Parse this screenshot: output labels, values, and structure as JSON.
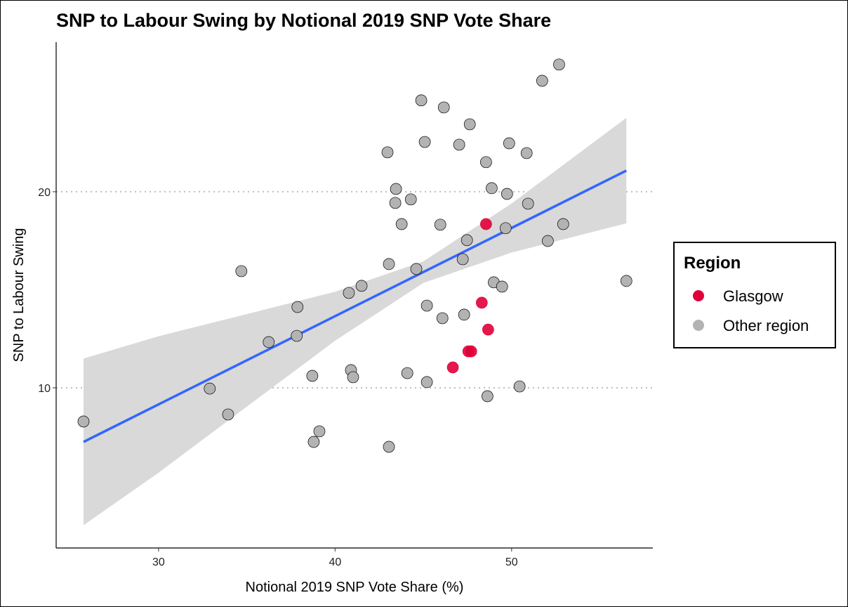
{
  "chart_data": {
    "type": "scatter",
    "title": "SNP to Labour Swing by Notional 2019 SNP Vote Share",
    "xlabel": "Notional 2019 SNP Vote Share (%)",
    "ylabel": "SNP to Labour Swing",
    "xlim": [
      24.2,
      58.0
    ],
    "ylim": [
      1.83,
      27.63
    ],
    "xticks": [
      30,
      40,
      50
    ],
    "yticks": [
      10,
      20
    ],
    "grid": "horizontal dotted at major y ticks",
    "legend": {
      "title": "Region",
      "placement": "right"
    },
    "colors": {
      "Glasgow": "#E0003A",
      "Other region": "#B3B3B3",
      "fit_line": "#3366FF",
      "ci_band": "#D9D9D9"
    },
    "series": [
      {
        "name": "Glasgow",
        "points": [
          [
            48.55,
            18.35
          ],
          [
            48.31,
            14.34
          ],
          [
            48.67,
            12.97
          ],
          [
            46.67,
            11.04
          ],
          [
            47.55,
            11.86
          ],
          [
            47.71,
            11.86
          ]
        ]
      },
      {
        "name": "Other region",
        "points": [
          [
            25.75,
            8.28
          ],
          [
            32.9,
            9.96
          ],
          [
            33.94,
            8.64
          ],
          [
            34.69,
            15.95
          ],
          [
            36.24,
            12.33
          ],
          [
            37.87,
            14.12
          ],
          [
            37.83,
            12.65
          ],
          [
            38.71,
            10.61
          ],
          [
            38.79,
            7.24
          ],
          [
            39.11,
            7.78
          ],
          [
            40.78,
            14.84
          ],
          [
            40.9,
            10.9
          ],
          [
            41.02,
            10.54
          ],
          [
            41.5,
            15.2
          ],
          [
            42.97,
            22.01
          ],
          [
            43.05,
            16.31
          ],
          [
            43.05,
            6.99
          ],
          [
            43.45,
            20.14
          ],
          [
            43.41,
            19.43
          ],
          [
            43.77,
            18.35
          ],
          [
            44.09,
            10.75
          ],
          [
            44.29,
            19.61
          ],
          [
            44.6,
            16.06
          ],
          [
            44.88,
            24.66
          ],
          [
            45.08,
            22.54
          ],
          [
            45.2,
            14.19
          ],
          [
            45.2,
            10.29
          ],
          [
            45.96,
            18.32
          ],
          [
            46.08,
            13.55
          ],
          [
            46.16,
            24.3
          ],
          [
            47.03,
            22.4
          ],
          [
            47.23,
            16.56
          ],
          [
            47.31,
            13.73
          ],
          [
            47.47,
            17.53
          ],
          [
            47.63,
            23.44
          ],
          [
            48.55,
            21.51
          ],
          [
            48.63,
            9.57
          ],
          [
            48.87,
            20.18
          ],
          [
            48.99,
            15.38
          ],
          [
            49.46,
            15.16
          ],
          [
            49.66,
            18.14
          ],
          [
            49.74,
            19.89
          ],
          [
            49.86,
            22.47
          ],
          [
            50.45,
            10.07
          ],
          [
            50.85,
            21.97
          ],
          [
            50.93,
            19.39
          ],
          [
            51.73,
            25.66
          ],
          [
            52.05,
            17.49
          ],
          [
            52.69,
            26.49
          ],
          [
            52.92,
            18.35
          ],
          [
            56.5,
            15.45
          ]
        ]
      }
    ],
    "fit": {
      "method": "linear",
      "x": [
        25.75,
        56.5
      ],
      "y": [
        7.24,
        21.08
      ]
    },
    "confidence_band": {
      "x": [
        25.75,
        30,
        35,
        40,
        45,
        50,
        56.5
      ],
      "lower": [
        2.99,
        5.67,
        9.04,
        12.4,
        15.35,
        16.9,
        18.39
      ],
      "upper": [
        11.49,
        12.63,
        13.76,
        14.9,
        16.45,
        19.4,
        23.77
      ]
    }
  }
}
